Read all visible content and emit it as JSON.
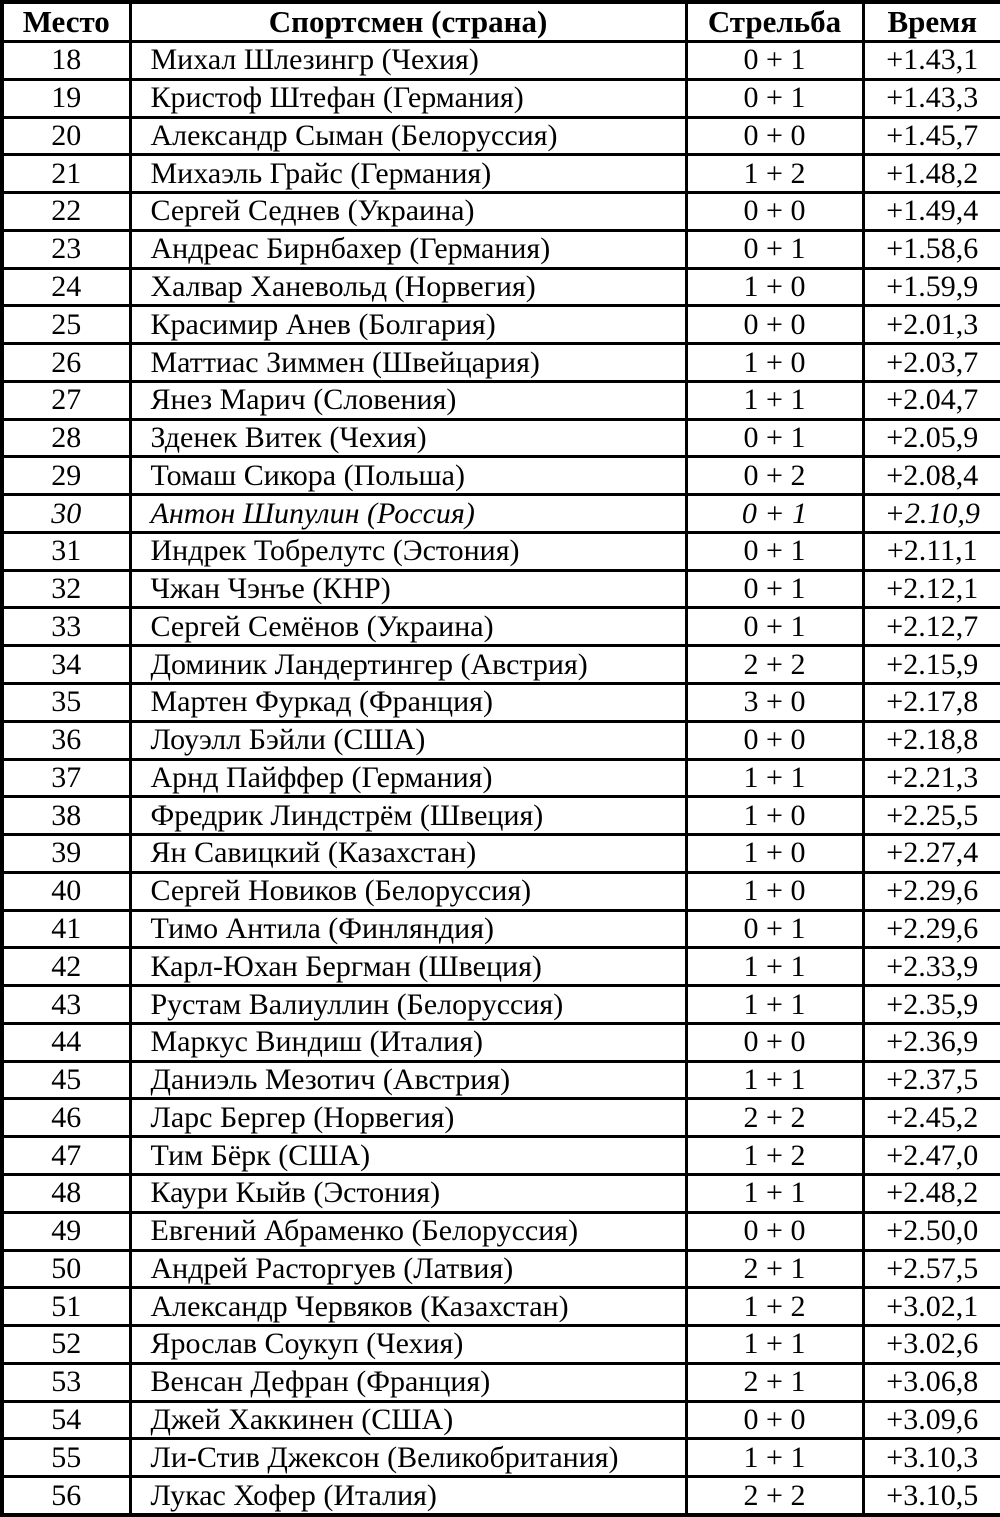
{
  "table": {
    "headers": {
      "place": "Место",
      "athlete": "Спортсмен (страна)",
      "shooting": "Стрельба",
      "time": "Время"
    },
    "rows": [
      {
        "place": "18",
        "athlete": "Михал Шлезингр (Чехия)",
        "shooting": "0 + 1",
        "time": "+1.43,1",
        "italic": false
      },
      {
        "place": "19",
        "athlete": "Кристоф Штефан (Германия)",
        "shooting": "0 + 1",
        "time": "+1.43,3",
        "italic": false
      },
      {
        "place": "20",
        "athlete": "Александр Сыман (Белоруссия)",
        "shooting": "0 + 0",
        "time": "+1.45,7",
        "italic": false
      },
      {
        "place": "21",
        "athlete": "Михаэль Грайс (Германия)",
        "shooting": "1 + 2",
        "time": "+1.48,2",
        "italic": false
      },
      {
        "place": "22",
        "athlete": "Сергей Седнев (Украина)",
        "shooting": "0 + 0",
        "time": "+1.49,4",
        "italic": false
      },
      {
        "place": "23",
        "athlete": "Андреас Бирнбахер (Германия)",
        "shooting": "0 + 1",
        "time": "+1.58,6",
        "italic": false
      },
      {
        "place": "24",
        "athlete": "Халвар Ханевольд (Норвегия)",
        "shooting": "1 + 0",
        "time": "+1.59,9",
        "italic": false
      },
      {
        "place": "25",
        "athlete": "Красимир Анев (Болгария)",
        "shooting": "0 + 0",
        "time": "+2.01,3",
        "italic": false
      },
      {
        "place": "26",
        "athlete": "Маттиас Зиммен (Швейцария)",
        "shooting": "1 + 0",
        "time": "+2.03,7",
        "italic": false
      },
      {
        "place": "27",
        "athlete": "Янез Марич (Словения)",
        "shooting": "1 + 1",
        "time": "+2.04,7",
        "italic": false
      },
      {
        "place": "28",
        "athlete": "Зденек Витек (Чехия)",
        "shooting": "0 + 1",
        "time": "+2.05,9",
        "italic": false
      },
      {
        "place": "29",
        "athlete": "Томаш Сикора (Польша)",
        "shooting": "0 + 2",
        "time": "+2.08,4",
        "italic": false
      },
      {
        "place": "30",
        "athlete": "Антон Шипулин (Россия)",
        "shooting": "0 + 1",
        "time": "+2.10,9",
        "italic": true
      },
      {
        "place": "31",
        "athlete": "Индрек Тобрелутс (Эстония)",
        "shooting": "0 + 1",
        "time": "+2.11,1",
        "italic": false
      },
      {
        "place": "32",
        "athlete": "Чжан Чэнъе (КНР)",
        "shooting": "0 + 1",
        "time": "+2.12,1",
        "italic": false
      },
      {
        "place": "33",
        "athlete": "Сергей Семёнов (Украина)",
        "shooting": "0 + 1",
        "time": "+2.12,7",
        "italic": false
      },
      {
        "place": "34",
        "athlete": "Доминик Ландертингер (Австрия)",
        "shooting": "2 + 2",
        "time": "+2.15,9",
        "italic": false
      },
      {
        "place": "35",
        "athlete": "Мартен Фуркад (Франция)",
        "shooting": "3 + 0",
        "time": "+2.17,8",
        "italic": false
      },
      {
        "place": "36",
        "athlete": "Лоуэлл Бэйли (США)",
        "shooting": "0 + 0",
        "time": "+2.18,8",
        "italic": false
      },
      {
        "place": "37",
        "athlete": "Арнд Пайффер (Германия)",
        "shooting": "1 + 1",
        "time": "+2.21,3",
        "italic": false
      },
      {
        "place": "38",
        "athlete": "Фредрик Линдстрём (Швеция)",
        "shooting": "1 + 0",
        "time": "+2.25,5",
        "italic": false
      },
      {
        "place": "39",
        "athlete": "Ян Савицкий (Казахстан)",
        "shooting": "1 + 0",
        "time": "+2.27,4",
        "italic": false
      },
      {
        "place": "40",
        "athlete": "Сергей Новиков (Белоруссия)",
        "shooting": "1 + 0",
        "time": "+2.29,6",
        "italic": false
      },
      {
        "place": "41",
        "athlete": "Тимо Антила (Финляндия)",
        "shooting": "0 + 1",
        "time": "+2.29,6",
        "italic": false
      },
      {
        "place": "42",
        "athlete": "Карл-Юхан Бергман (Швеция)",
        "shooting": "1 + 1",
        "time": "+2.33,9",
        "italic": false
      },
      {
        "place": "43",
        "athlete": "Рустам Валиуллин (Белоруссия)",
        "shooting": "1 + 1",
        "time": "+2.35,9",
        "italic": false
      },
      {
        "place": "44",
        "athlete": "Маркус Виндиш (Италия)",
        "shooting": "0 + 0",
        "time": "+2.36,9",
        "italic": false
      },
      {
        "place": "45",
        "athlete": "Даниэль Мезотич (Австрия)",
        "shooting": "1 + 1",
        "time": "+2.37,5",
        "italic": false
      },
      {
        "place": "46",
        "athlete": "Ларс Бергер (Норвегия)",
        "shooting": "2 + 2",
        "time": "+2.45,2",
        "italic": false
      },
      {
        "place": "47",
        "athlete": "Тим Бёрк (США)",
        "shooting": "1 + 2",
        "time": "+2.47,0",
        "italic": false
      },
      {
        "place": "48",
        "athlete": "Каури Кыйв (Эстония)",
        "shooting": "1 + 1",
        "time": "+2.48,2",
        "italic": false
      },
      {
        "place": "49",
        "athlete": "Евгений Абраменко (Белоруссия)",
        "shooting": "0 + 0",
        "time": "+2.50,0",
        "italic": false
      },
      {
        "place": "50",
        "athlete": "Андрей Расторгуев (Латвия)",
        "shooting": "2 + 1",
        "time": "+2.57,5",
        "italic": false
      },
      {
        "place": "51",
        "athlete": "Александр Червяков (Казахстан)",
        "shooting": "1 + 2",
        "time": "+3.02,1",
        "italic": false
      },
      {
        "place": "52",
        "athlete": "Ярослав Соукуп (Чехия)",
        "shooting": "1 + 1",
        "time": "+3.02,6",
        "italic": false
      },
      {
        "place": "53",
        "athlete": "Венсан Дефран (Франция)",
        "shooting": "2 + 1",
        "time": "+3.06,8",
        "italic": false
      },
      {
        "place": "54",
        "athlete": "Джей Хаккинен (США)",
        "shooting": "0 + 0",
        "time": "+3.09,6",
        "italic": false
      },
      {
        "place": "55",
        "athlete": "Ли-Стив Джексон (Великобритания)",
        "shooting": "1 + 1",
        "time": "+3.10,3",
        "italic": false
      },
      {
        "place": "56",
        "athlete": "Лукас Хофер (Италия)",
        "shooting": "2 + 2",
        "time": "+3.10,5",
        "italic": false
      }
    ]
  }
}
